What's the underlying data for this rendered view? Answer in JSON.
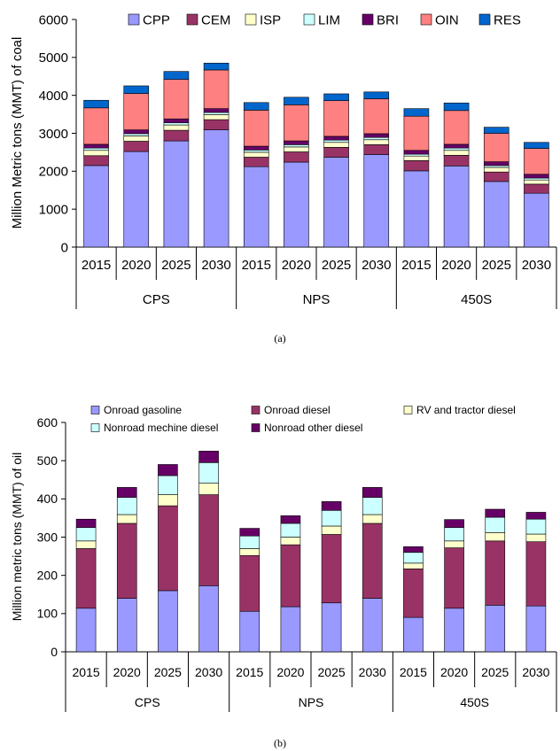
{
  "chart_data": [
    {
      "type": "bar",
      "stacked": true,
      "caption": "(a)",
      "xlabel": "",
      "ylabel": "Million Metric tons (MMT) of coal",
      "ylim": [
        0,
        6000
      ],
      "yticks": [
        0,
        1000,
        2000,
        3000,
        4000,
        5000,
        6000
      ],
      "groups": [
        "CPS",
        "NPS",
        "450S"
      ],
      "categories": [
        "2015",
        "2020",
        "2025",
        "2030",
        "2015",
        "2020",
        "2025",
        "2030",
        "2015",
        "2020",
        "2025",
        "2030"
      ],
      "legend": {
        "placement": "top",
        "columns": 7
      },
      "grid": false,
      "series": [
        {
          "name": "CPP",
          "color": "#9999ff",
          "values": [
            2150,
            2520,
            2800,
            3090,
            2120,
            2240,
            2370,
            2440,
            2010,
            2140,
            1730,
            1420
          ]
        },
        {
          "name": "CEM",
          "color": "#993366",
          "values": [
            260,
            270,
            280,
            270,
            250,
            270,
            260,
            260,
            270,
            280,
            250,
            240
          ]
        },
        {
          "name": "ISP",
          "color": "#ffffcc",
          "values": [
            140,
            140,
            140,
            130,
            130,
            130,
            130,
            130,
            120,
            130,
            120,
            110
          ]
        },
        {
          "name": "LIM",
          "color": "#ccffff",
          "values": [
            60,
            60,
            60,
            60,
            60,
            60,
            60,
            60,
            50,
            60,
            50,
            50
          ]
        },
        {
          "name": "BRI",
          "color": "#660066",
          "values": [
            100,
            100,
            100,
            100,
            100,
            100,
            100,
            100,
            100,
            100,
            100,
            100
          ]
        },
        {
          "name": "OIN",
          "color": "#ff8080",
          "values": [
            960,
            960,
            1040,
            1020,
            950,
            950,
            940,
            920,
            900,
            890,
            750,
            680
          ]
        },
        {
          "name": "RES",
          "color": "#0066cc",
          "values": [
            200,
            200,
            210,
            180,
            200,
            200,
            180,
            180,
            200,
            200,
            160,
            160
          ]
        }
      ]
    },
    {
      "type": "bar",
      "stacked": true,
      "caption": "(b)",
      "xlabel": "",
      "ylabel": "Million metric tons (MMT) of oil",
      "ylim": [
        0,
        600
      ],
      "yticks": [
        0,
        100,
        200,
        300,
        400,
        500,
        600
      ],
      "groups": [
        "CPS",
        "NPS",
        "450S"
      ],
      "categories": [
        "2015",
        "2020",
        "2025",
        "2030",
        "2015",
        "2020",
        "2025",
        "2030",
        "2015",
        "2020",
        "2025",
        "2030"
      ],
      "legend": {
        "placement": "top",
        "columns": 3
      },
      "grid": false,
      "series": [
        {
          "name": "Onroad gasoline",
          "color": "#9999ff",
          "values": [
            114,
            140,
            160,
            173,
            106,
            118,
            128,
            140,
            90,
            114,
            122,
            120
          ]
        },
        {
          "name": "Onroad diesel",
          "color": "#993366",
          "values": [
            156,
            196,
            222,
            238,
            146,
            162,
            179,
            196,
            127,
            158,
            168,
            168
          ]
        },
        {
          "name": "RV and tractor diesel",
          "color": "#ffffcc",
          "values": [
            20,
            23,
            29,
            30,
            18,
            20,
            22,
            23,
            15,
            18,
            22,
            20
          ]
        },
        {
          "name": "Nonroad mechine diesel",
          "color": "#ccffff",
          "values": [
            35,
            45,
            50,
            54,
            33,
            36,
            41,
            45,
            28,
            35,
            40,
            39
          ]
        },
        {
          "name": "Nonroad other diesel",
          "color": "#660066",
          "values": [
            22,
            26,
            29,
            30,
            20,
            20,
            23,
            26,
            15,
            21,
            21,
            18
          ]
        }
      ]
    }
  ]
}
